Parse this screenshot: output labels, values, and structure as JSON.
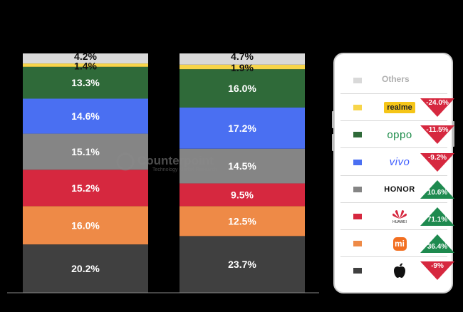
{
  "chart_data": {
    "type": "stacked_bar",
    "bars": [
      {
        "segments": [
          {
            "key": "apple",
            "value": 20.2,
            "label": "20.2%",
            "color": "#404040"
          },
          {
            "key": "xiaomi",
            "value": 16.0,
            "label": "16.0%",
            "color": "#ee8a47"
          },
          {
            "key": "huawei",
            "value": 15.2,
            "label": "15.2%",
            "color": "#d6283f"
          },
          {
            "key": "honor",
            "value": 15.1,
            "label": "15.1%",
            "color": "#858585"
          },
          {
            "key": "vivo",
            "value": 14.6,
            "label": "14.6%",
            "color": "#4a6ff2"
          },
          {
            "key": "oppo",
            "value": 13.3,
            "label": "13.3%",
            "color": "#2f6a39"
          },
          {
            "key": "realme",
            "value": 1.4,
            "label": "1.4%",
            "color": "#f7d54a"
          },
          {
            "key": "others",
            "value": 4.2,
            "label": "4.2%",
            "color": "#d9d9d9"
          }
        ]
      },
      {
        "segments": [
          {
            "key": "apple",
            "value": 23.7,
            "label": "23.7%",
            "color": "#404040"
          },
          {
            "key": "xiaomi",
            "value": 12.5,
            "label": "12.5%",
            "color": "#ee8a47"
          },
          {
            "key": "huawei",
            "value": 9.5,
            "label": "9.5%",
            "color": "#d6283f"
          },
          {
            "key": "honor",
            "value": 14.5,
            "label": "14.5%",
            "color": "#858585"
          },
          {
            "key": "vivo",
            "value": 17.2,
            "label": "17.2%",
            "color": "#4a6ff2"
          },
          {
            "key": "oppo",
            "value": 16.0,
            "label": "16.0%",
            "color": "#2f6a39"
          },
          {
            "key": "realme",
            "value": 1.9,
            "label": "1.9%",
            "color": "#f7d54a"
          },
          {
            "key": "others",
            "value": 4.7,
            "label": "4.7%",
            "color": "#d9d9d9"
          }
        ]
      }
    ],
    "ylim": [
      0,
      100
    ],
    "legend": {
      "placement": "right",
      "items": [
        {
          "key": "others",
          "label": "Others",
          "color": "#d9d9d9",
          "change": null
        },
        {
          "key": "realme",
          "label": "realme",
          "color": "#f7d54a",
          "change": "-24.0%",
          "direction": "down"
        },
        {
          "key": "oppo",
          "label": "oppo",
          "color": "#2f6a39",
          "change": "-11.5%",
          "direction": "down"
        },
        {
          "key": "vivo",
          "label": "vivo",
          "color": "#4a6ff2",
          "change": "-9.2%",
          "direction": "down"
        },
        {
          "key": "honor",
          "label": "HONOR",
          "color": "#858585",
          "change": "10.6%",
          "direction": "up"
        },
        {
          "key": "huawei",
          "label": "HUAWEI",
          "color": "#d6283f",
          "change": "71.1%",
          "direction": "up"
        },
        {
          "key": "xiaomi",
          "label": "mi",
          "color": "#ee8a47",
          "change": "36.4%",
          "direction": "up"
        },
        {
          "key": "apple",
          "label": "",
          "color": "#404040",
          "change": "-9%",
          "direction": "down"
        }
      ]
    }
  },
  "colors": {
    "down": "#d6283f",
    "up": "#1e8a4f"
  },
  "watermark": {
    "brand": "Counterpoint",
    "sub": "Technology Market Research"
  }
}
